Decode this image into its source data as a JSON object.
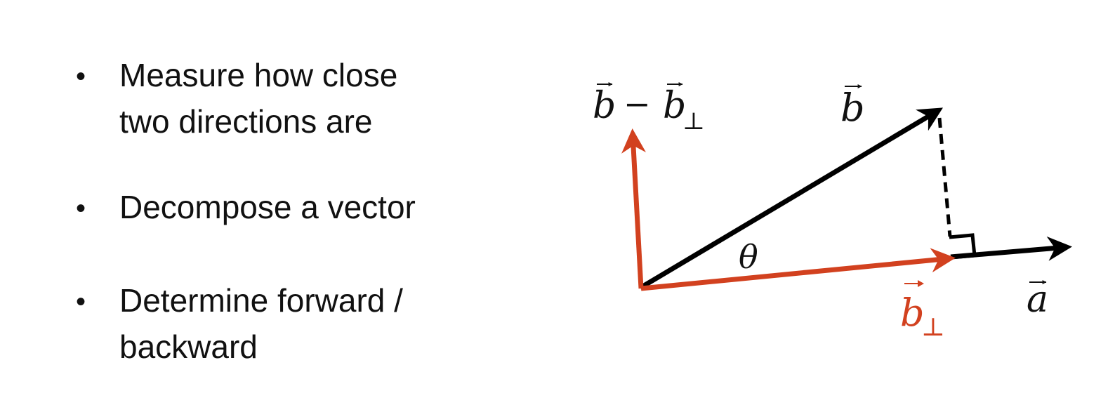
{
  "bullets": [
    {
      "dot": "•",
      "text": "Measure how close\ntwo directions are"
    },
    {
      "dot": "•",
      "text": "Decompose a vector"
    },
    {
      "dot": "•",
      "text": "Determine forward /\nbackward"
    }
  ],
  "diagram": {
    "labels": {
      "b_minus_bperp": {
        "b": "b",
        "minus": "−",
        "b2": "b",
        "perp": "⊥"
      },
      "b": "b",
      "theta": "θ",
      "bperp": {
        "b": "b",
        "perp": "⊥"
      },
      "a": "a"
    },
    "colors": {
      "black": "#000000",
      "red": "#d2411f"
    }
  }
}
